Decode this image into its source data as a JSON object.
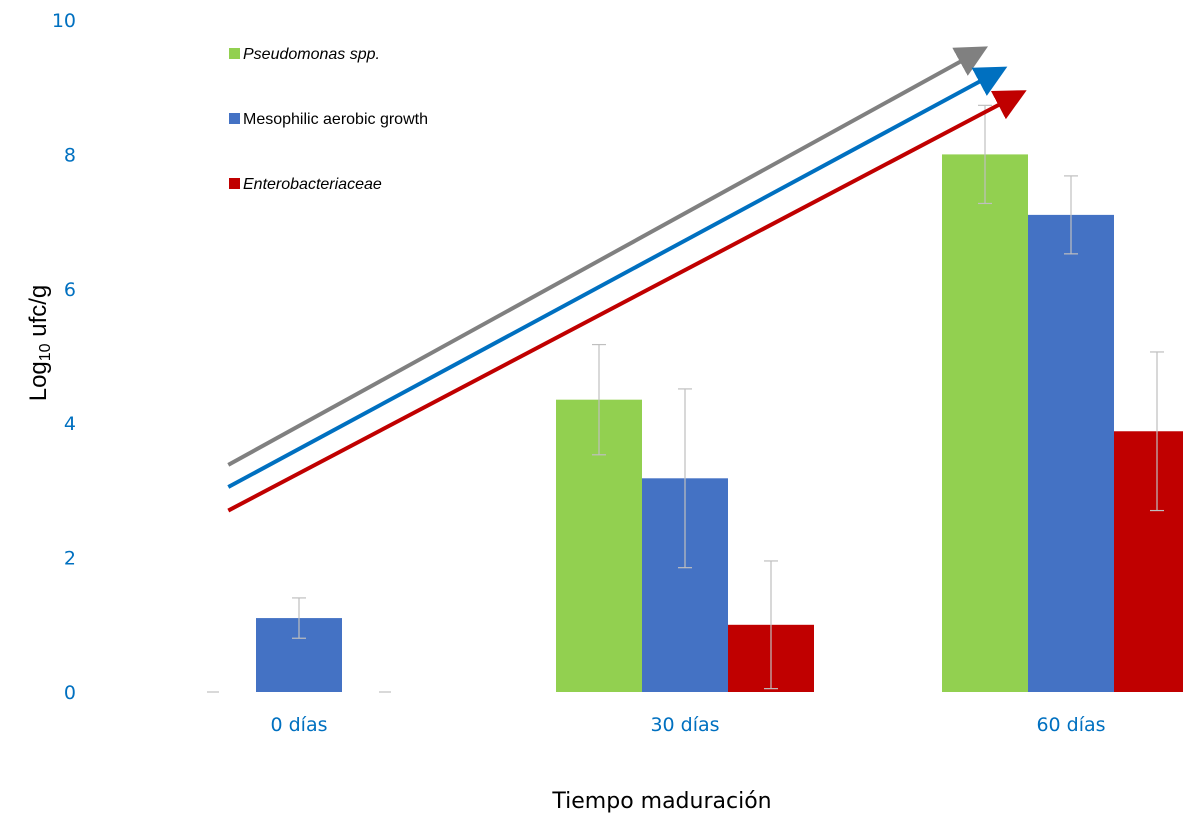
{
  "chart_data": {
    "type": "bar",
    "title": "",
    "xlabel": "Tiempo maduración",
    "ylabel": "Log10 ufc/g",
    "ylabel_parts": [
      "Log",
      "10",
      " ufc/g"
    ],
    "ylim": [
      0,
      10
    ],
    "yticks": [
      "0",
      "2",
      "4",
      "6",
      "8",
      "10"
    ],
    "categories": [
      "0 días",
      "30 días",
      "60 días"
    ],
    "grid": false,
    "legend_position": "top-left",
    "series": [
      {
        "name": "Pseudomonas spp.",
        "italic": true,
        "color": "#92D050",
        "values": [
          0,
          4.35,
          8.0
        ],
        "errors": [
          0,
          0.82,
          0.73
        ]
      },
      {
        "name": "Mesophilic aerobic growth",
        "italic": false,
        "color": "#4472C4",
        "values": [
          1.1,
          3.18,
          7.1
        ],
        "errors": [
          0.3,
          1.33,
          0.58
        ]
      },
      {
        "name": "Enterobacteriaceae",
        "italic": true,
        "color": "#C00000",
        "values": [
          0,
          1.0,
          3.88
        ],
        "errors": [
          0,
          0.95,
          1.18
        ]
      }
    ],
    "annotations": {
      "trend_arrows": [
        {
          "color": "#808080",
          "from": [
            0.05,
            3.38
          ],
          "to": [
            2.0,
            9.55
          ]
        },
        {
          "color": "#0070C0",
          "from": [
            0.05,
            3.05
          ],
          "to": [
            2.05,
            9.25
          ]
        },
        {
          "color": "#C00000",
          "from": [
            0.05,
            2.7
          ],
          "to": [
            2.1,
            8.9
          ]
        }
      ]
    },
    "tick_color": "#0070C0"
  }
}
